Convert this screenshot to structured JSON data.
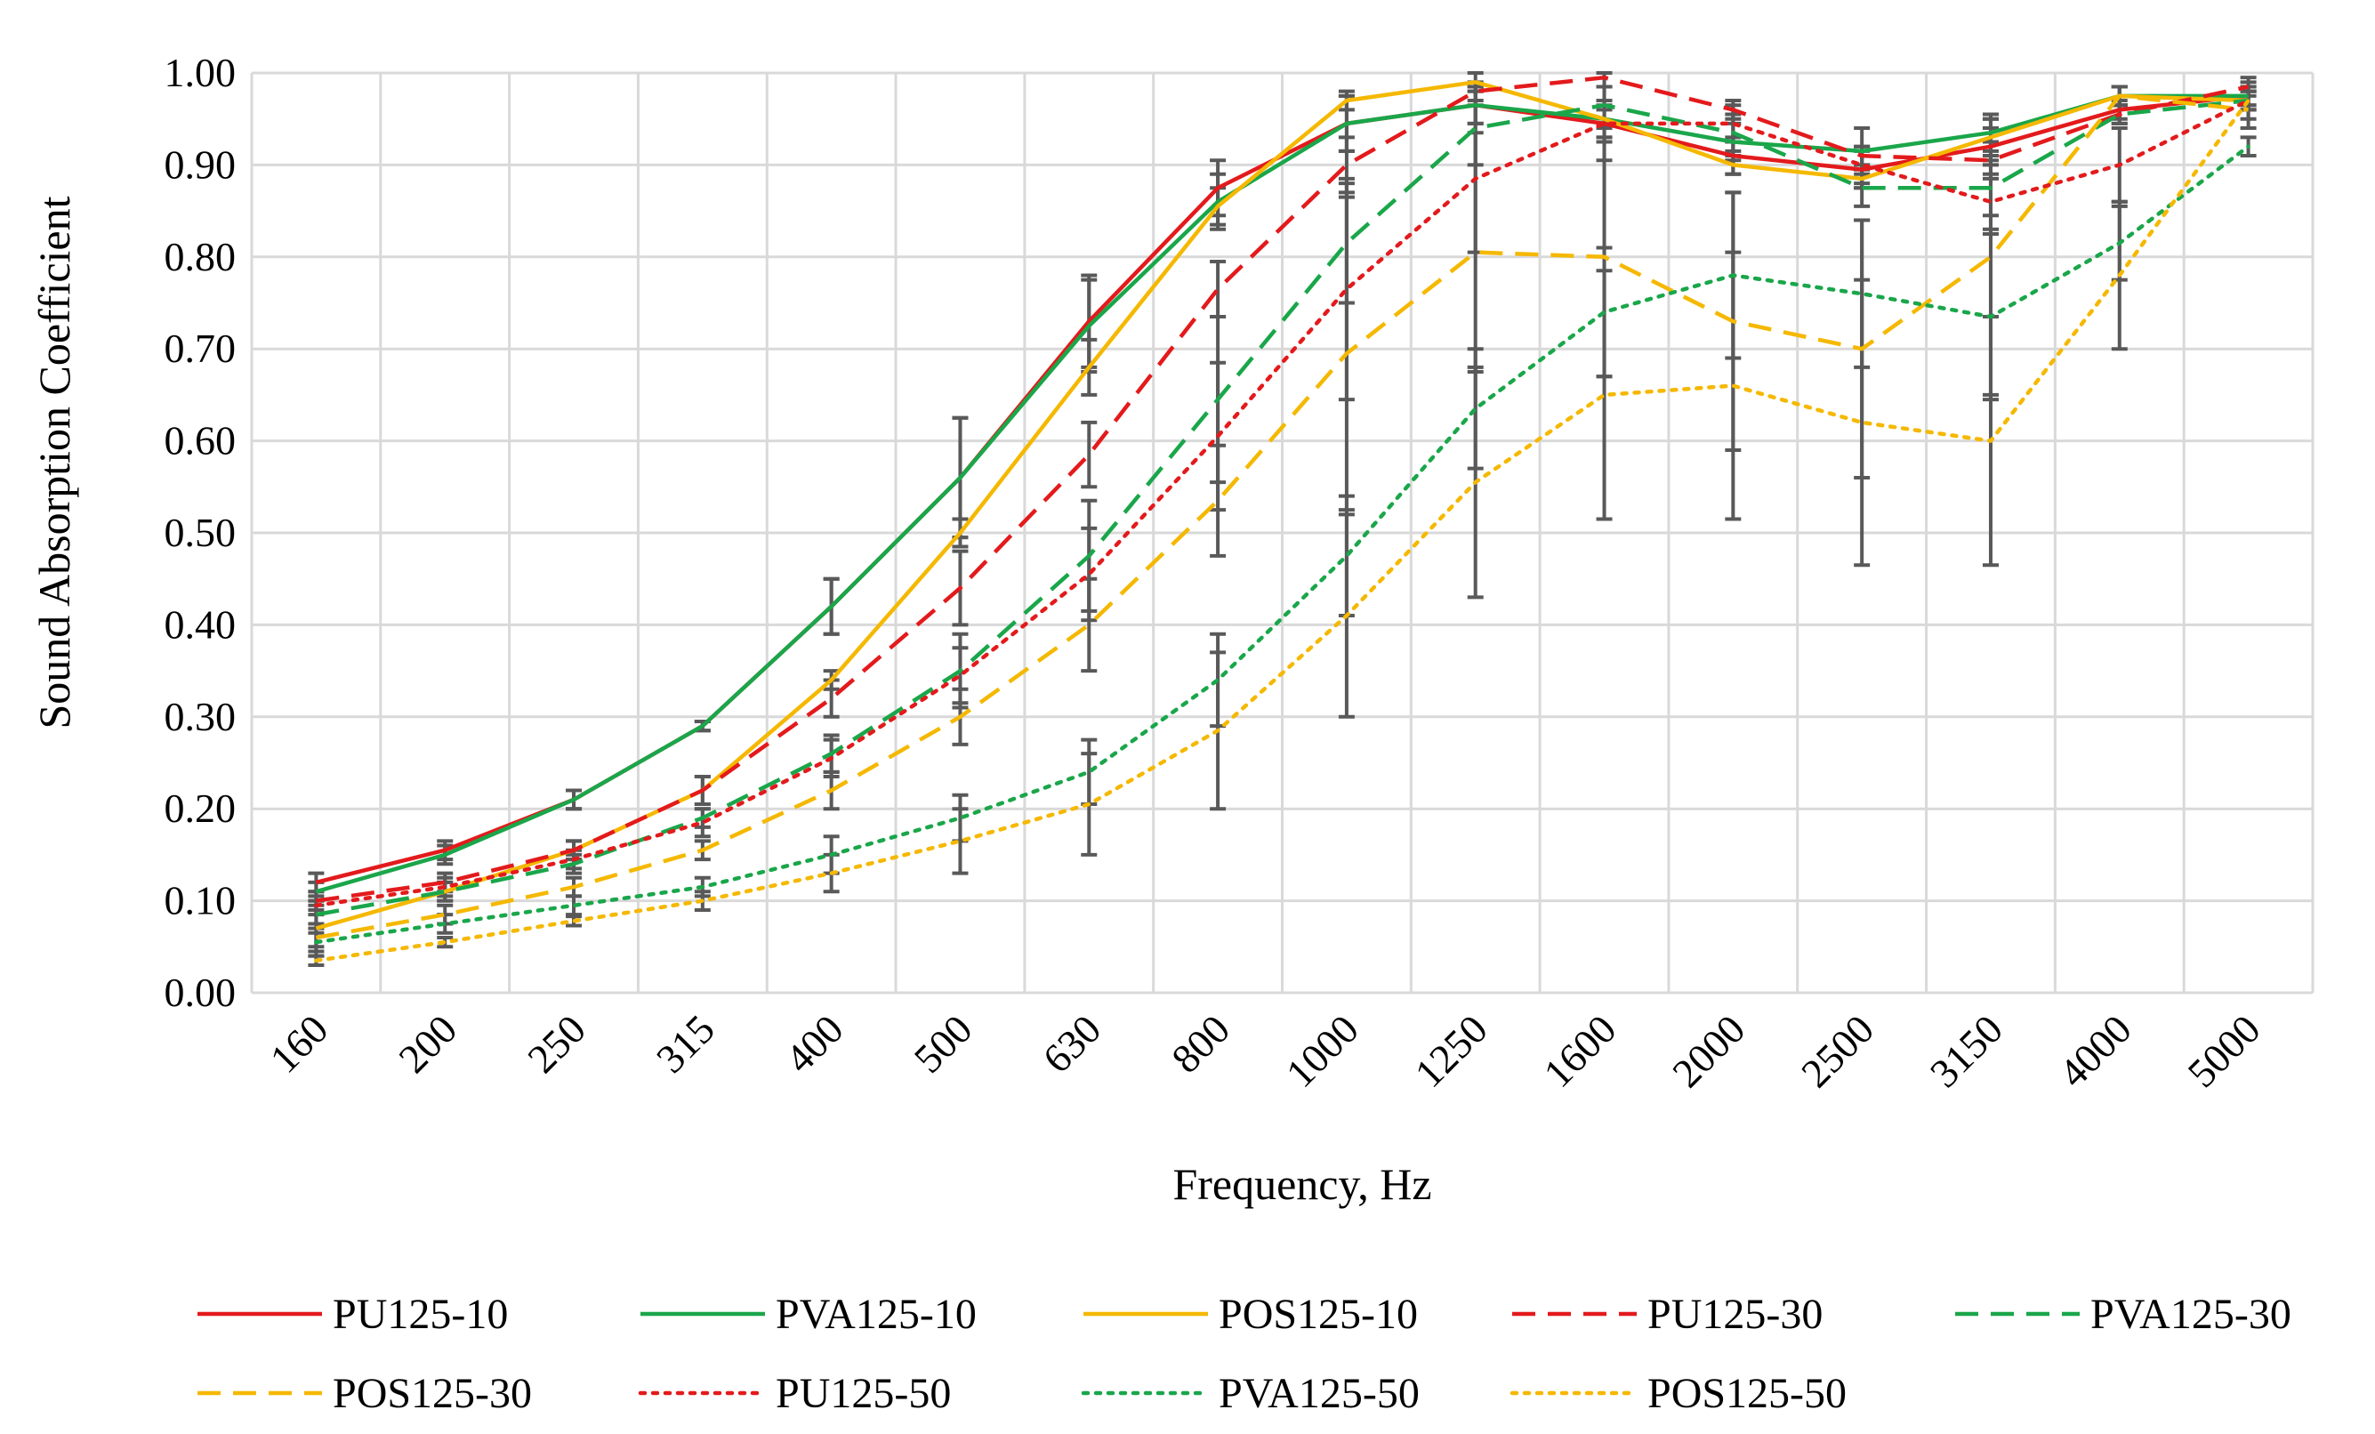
{
  "chart_data": {
    "type": "line",
    "xlabel": "Frequency, Hz",
    "ylabel": "Sound Absorption Coefficient",
    "categories": [
      "160",
      "200",
      "250",
      "315",
      "400",
      "500",
      "630",
      "800",
      "1000",
      "1250",
      "1600",
      "2000",
      "2500",
      "3150",
      "4000",
      "5000"
    ],
    "ylim": [
      0,
      1.0
    ],
    "yticks": [
      "0.00",
      "0.10",
      "0.20",
      "0.30",
      "0.40",
      "0.50",
      "0.60",
      "0.70",
      "0.80",
      "0.90",
      "1.00"
    ],
    "grid": true,
    "legend_position": "bottom",
    "series": [
      {
        "name": "PU125-10",
        "color": "#e31a1c",
        "dash": "solid",
        "values": [
          0.12,
          0.155,
          0.21,
          0.29,
          0.42,
          0.56,
          0.73,
          0.875,
          0.945,
          0.965,
          0.945,
          0.91,
          0.895,
          0.92,
          0.96,
          0.975
        ],
        "error": [
          0.01,
          0.01,
          0.01,
          0.005,
          0.03,
          0.065,
          0.05,
          0.03,
          0.03,
          0.02,
          0.02,
          0.02,
          0.02,
          0.02,
          0.01,
          0.01
        ]
      },
      {
        "name": "PVA125-10",
        "color": "#1aa64a",
        "dash": "solid",
        "values": [
          0.11,
          0.15,
          0.21,
          0.29,
          0.42,
          0.56,
          0.725,
          0.86,
          0.945,
          0.965,
          0.95,
          0.925,
          0.915,
          0.935,
          0.975,
          0.975
        ],
        "error": [
          0.01,
          0.01,
          0.01,
          0.005,
          0.03,
          0.065,
          0.05,
          0.03,
          0.03,
          0.02,
          0.02,
          0.02,
          0.025,
          0.02,
          0.01,
          0.01
        ]
      },
      {
        "name": "POS125-10",
        "color": "#f5b800",
        "dash": "solid",
        "values": [
          0.07,
          0.11,
          0.155,
          0.22,
          0.34,
          0.5,
          0.68,
          0.855,
          0.97,
          0.99,
          0.95,
          0.9,
          0.885,
          0.93,
          0.975,
          0.97
        ],
        "error": [
          0.03,
          0.01,
          0.01,
          0.015,
          0.01,
          0.015,
          0.03,
          0.02,
          0.01,
          0.01,
          0.01,
          0.01,
          0.01,
          0.02,
          0.01,
          0.01
        ]
      },
      {
        "name": "PU125-30",
        "color": "#e31a1c",
        "dash": "dashed",
        "values": [
          0.1,
          0.12,
          0.155,
          0.22,
          0.32,
          0.44,
          0.585,
          0.765,
          0.9,
          0.98,
          0.995,
          0.96,
          0.91,
          0.905,
          0.955,
          0.985
        ],
        "error": [
          0.01,
          0.01,
          0.01,
          0.015,
          0.02,
          0.04,
          0.035,
          0.03,
          0.03,
          0.01,
          0.01,
          0.01,
          0.01,
          0.02,
          0.01,
          0.01
        ]
      },
      {
        "name": "PVA125-30",
        "color": "#1aa64a",
        "dash": "dashed",
        "values": [
          0.085,
          0.11,
          0.14,
          0.19,
          0.26,
          0.35,
          0.475,
          0.645,
          0.815,
          0.94,
          0.965,
          0.935,
          0.875,
          0.875,
          0.955,
          0.97
        ],
        "error": [
          0.01,
          0.01,
          0.01,
          0.01,
          0.02,
          0.04,
          0.06,
          0.09,
          0.065,
          0.04,
          0.02,
          0.02,
          0.02,
          0.03,
          0.01,
          0.01
        ]
      },
      {
        "name": "POS125-30",
        "color": "#f5b800",
        "dash": "dashed",
        "values": [
          0.06,
          0.085,
          0.115,
          0.155,
          0.22,
          0.3,
          0.4,
          0.535,
          0.695,
          0.805,
          0.8,
          0.73,
          0.7,
          0.8,
          0.975,
          0.96
        ],
        "error": [
          0.01,
          0.01,
          0.01,
          0.01,
          0.02,
          0.03,
          0.05,
          0.06,
          0.17,
          0.13,
          0.13,
          0.14,
          0.14,
          0.15,
          0.01,
          0.02
        ]
      },
      {
        "name": "PU125-50",
        "color": "#e31a1c",
        "dash": "dotted",
        "values": [
          0.095,
          0.115,
          0.145,
          0.185,
          0.255,
          0.345,
          0.455,
          0.605,
          0.765,
          0.885,
          0.945,
          0.945,
          0.9,
          0.86,
          0.9,
          0.97
        ],
        "error": [
          0.01,
          0.01,
          0.01,
          0.015,
          0.02,
          0.03,
          0.05,
          0.08,
          0.12,
          0.08,
          0.04,
          0.02,
          0.02,
          0.03,
          0.04,
          0.02
        ]
      },
      {
        "name": "PVA125-50",
        "color": "#1aa64a",
        "dash": "dotted",
        "values": [
          0.055,
          0.075,
          0.095,
          0.115,
          0.15,
          0.19,
          0.24,
          0.34,
          0.475,
          0.635,
          0.74,
          0.78,
          0.76,
          0.735,
          0.815,
          0.92
        ],
        "error": [
          0.01,
          0.01,
          0.01,
          0.01,
          0.02,
          0.025,
          0.035,
          0.05,
          0.065,
          0.065,
          0.07,
          0.09,
          0.08,
          0.09,
          0.04,
          0.01
        ]
      },
      {
        "name": "POS125-50",
        "color": "#f5b800",
        "dash": "dotted",
        "values": [
          0.035,
          0.055,
          0.078,
          0.1,
          0.13,
          0.165,
          0.205,
          0.285,
          0.41,
          0.555,
          0.65,
          0.66,
          0.62,
          0.6,
          0.78,
          0.97
        ],
        "error": [
          0.005,
          0.005,
          0.005,
          0.01,
          0.02,
          0.035,
          0.055,
          0.085,
          0.11,
          0.125,
          0.135,
          0.145,
          0.155,
          0.135,
          0.08,
          0.01
        ]
      }
    ]
  }
}
